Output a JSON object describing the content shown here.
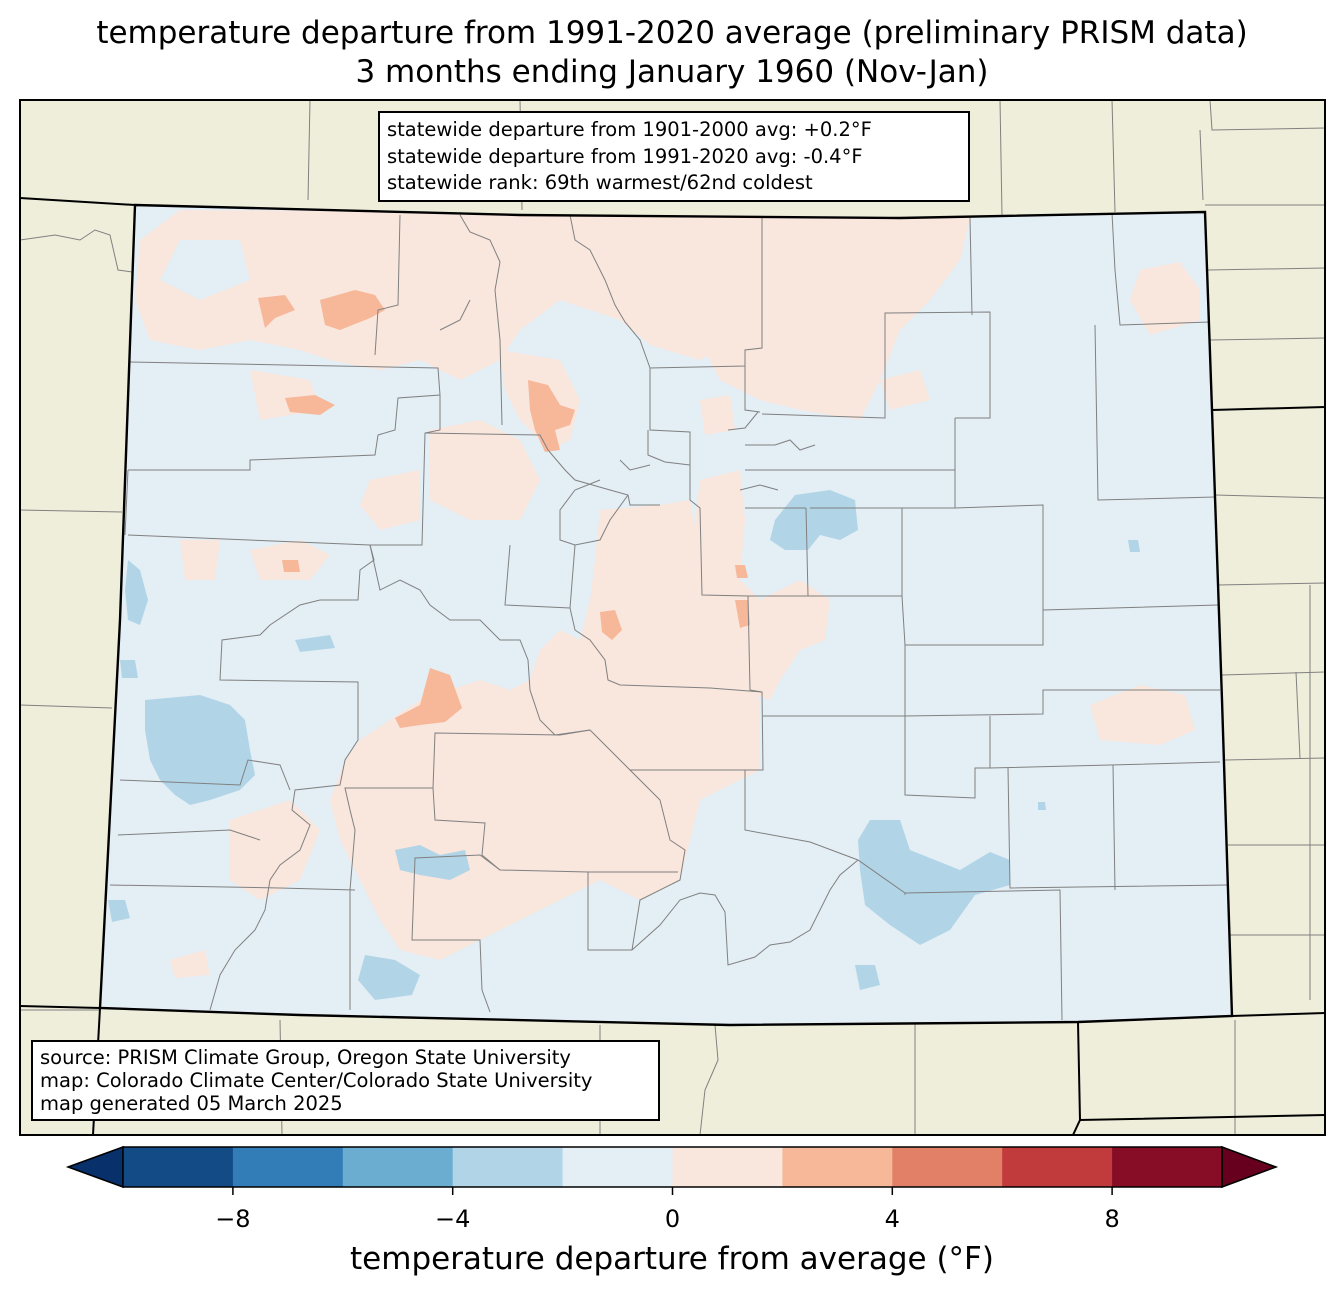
{
  "title": {
    "line1": "temperature departure from 1991-2020 average (preliminary PRISM data)",
    "line2": "3 months ending January 1960 (Nov-Jan)"
  },
  "stats_box": {
    "line1": "statewide departure from 1901-2000 avg: +0.2°F",
    "line2": "statewide departure from 1991-2020 avg: -0.4°F",
    "line3": "statewide rank: 69th warmest/62nd coldest"
  },
  "credits_box": {
    "line1": "source: PRISM Climate Group, Oregon State University",
    "line2": "map: Colorado Climate Center/Colorado State University",
    "line3": "map generated 05 March 2025"
  },
  "colorbar": {
    "label": "temperature departure from average (°F)",
    "ticks": [
      "−8",
      "−4",
      "0",
      "4",
      "8"
    ],
    "tick_values": [
      -8,
      -4,
      0,
      4,
      8
    ],
    "range": [
      -10,
      10
    ],
    "bins": [
      {
        "from": -10,
        "to": -8,
        "color": "#134b87"
      },
      {
        "from": -8,
        "to": -6,
        "color": "#327cb7"
      },
      {
        "from": -6,
        "to": -4,
        "color": "#6bacd1"
      },
      {
        "from": -4,
        "to": -2,
        "color": "#b1d5e7"
      },
      {
        "from": -2,
        "to": 0,
        "color": "#e4eef5"
      },
      {
        "from": 0,
        "to": 2,
        "color": "#f9e6dd"
      },
      {
        "from": 2,
        "to": 4,
        "color": "#f7b799"
      },
      {
        "from": 4,
        "to": 6,
        "color": "#e17f67"
      },
      {
        "from": 6,
        "to": 8,
        "color": "#c23b3c"
      },
      {
        "from": 8,
        "to": 10,
        "color": "#870c25"
      }
    ],
    "under_color": "#08306b",
    "over_color": "#67001f"
  },
  "map_colors": {
    "background_land": "#efeedb",
    "state_fill": "#e4eef5",
    "warm_light": "#f9e6dd",
    "warm_medium": "#f7b799",
    "cool_light": "#b1d5e7",
    "county_line": "#808080",
    "state_line": "#000000"
  }
}
